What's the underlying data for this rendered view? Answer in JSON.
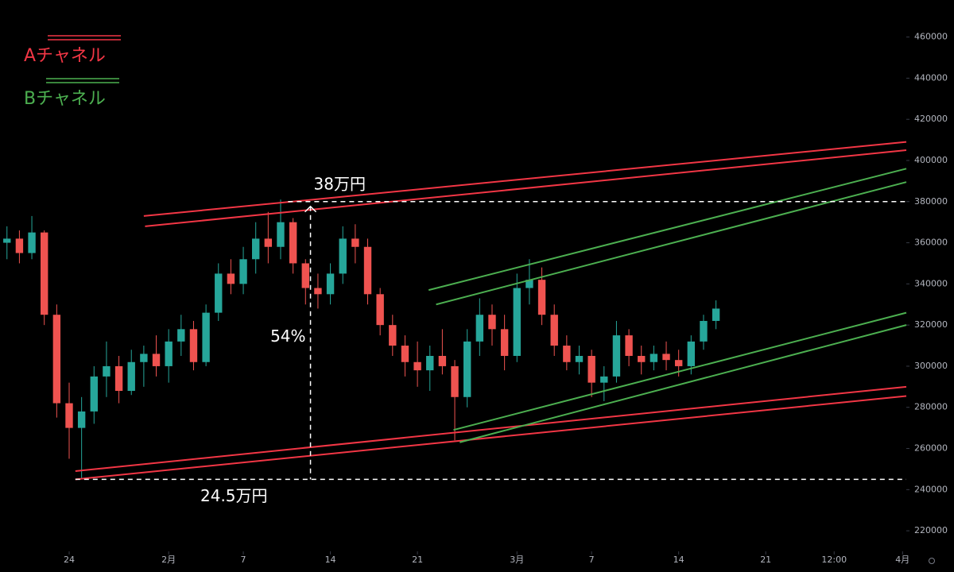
{
  "chart_data": {
    "type": "candlestick",
    "x": [
      -5,
      -4,
      -3,
      -2,
      -1,
      0,
      1,
      2,
      3,
      4,
      5,
      6,
      7,
      8,
      9,
      10,
      11,
      12,
      13,
      14,
      15,
      16,
      17,
      18,
      19,
      20,
      21,
      22,
      23,
      24,
      25,
      26,
      27,
      28,
      29,
      30,
      31,
      32,
      33,
      34,
      35,
      36,
      37,
      38,
      39,
      40,
      41,
      42,
      43,
      44,
      45,
      46,
      47,
      48,
      49,
      50,
      51,
      52
    ],
    "ohlc": [
      [
        360000,
        368000,
        352000,
        362000
      ],
      [
        362000,
        366000,
        350000,
        355000
      ],
      [
        355000,
        373000,
        352000,
        365000
      ],
      [
        365000,
        366000,
        320000,
        325000
      ],
      [
        325000,
        330000,
        275000,
        282000
      ],
      [
        282000,
        292000,
        255000,
        270000
      ],
      [
        270000,
        285000,
        245000,
        278000
      ],
      [
        278000,
        300000,
        272000,
        295000
      ],
      [
        295000,
        312000,
        285000,
        300000
      ],
      [
        300000,
        305000,
        282000,
        288000
      ],
      [
        288000,
        308000,
        286000,
        302000
      ],
      [
        302000,
        310000,
        290000,
        306000
      ],
      [
        306000,
        315000,
        295000,
        300000
      ],
      [
        300000,
        318000,
        292000,
        312000
      ],
      [
        312000,
        325000,
        305000,
        318000
      ],
      [
        318000,
        322000,
        298000,
        302000
      ],
      [
        302000,
        330000,
        300000,
        326000
      ],
      [
        326000,
        350000,
        322000,
        345000
      ],
      [
        345000,
        352000,
        335000,
        340000
      ],
      [
        340000,
        358000,
        335000,
        352000
      ],
      [
        352000,
        370000,
        345000,
        362000
      ],
      [
        362000,
        375000,
        350000,
        358000
      ],
      [
        358000,
        381000,
        352000,
        370000
      ],
      [
        370000,
        372000,
        345000,
        350000
      ],
      [
        350000,
        352000,
        330000,
        338000
      ],
      [
        338000,
        345000,
        328000,
        335000
      ],
      [
        335000,
        350000,
        330000,
        345000
      ],
      [
        345000,
        368000,
        340000,
        362000
      ],
      [
        362000,
        369000,
        350000,
        358000
      ],
      [
        358000,
        362000,
        330000,
        335000
      ],
      [
        335000,
        338000,
        315000,
        320000
      ],
      [
        320000,
        325000,
        305000,
        310000
      ],
      [
        310000,
        315000,
        295000,
        302000
      ],
      [
        302000,
        312000,
        290000,
        298000
      ],
      [
        298000,
        310000,
        288000,
        305000
      ],
      [
        305000,
        318000,
        296000,
        300000
      ],
      [
        300000,
        303000,
        264000,
        285000
      ],
      [
        285000,
        318000,
        280000,
        312000
      ],
      [
        312000,
        333000,
        305000,
        325000
      ],
      [
        325000,
        330000,
        310000,
        318000
      ],
      [
        318000,
        325000,
        298000,
        305000
      ],
      [
        305000,
        345000,
        302000,
        338000
      ],
      [
        338000,
        352000,
        330000,
        342000
      ],
      [
        342000,
        348000,
        320000,
        325000
      ],
      [
        325000,
        330000,
        305000,
        310000
      ],
      [
        310000,
        315000,
        298000,
        302000
      ],
      [
        302000,
        310000,
        296000,
        305000
      ],
      [
        305000,
        308000,
        285000,
        292000
      ],
      [
        292000,
        300000,
        283000,
        295000
      ],
      [
        295000,
        322000,
        292000,
        315000
      ],
      [
        315000,
        318000,
        300000,
        305000
      ],
      [
        305000,
        310000,
        296000,
        302000
      ],
      [
        302000,
        310000,
        298000,
        306000
      ],
      [
        306000,
        312000,
        298000,
        303000
      ],
      [
        303000,
        308000,
        295000,
        300000
      ],
      [
        300000,
        315000,
        296000,
        312000
      ],
      [
        312000,
        325000,
        308000,
        322000
      ],
      [
        322000,
        332000,
        318000,
        328000
      ]
    ],
    "up_color": "#26a69a",
    "down_color": "#ef5350",
    "xlim": [
      -5.56,
      67.3
    ],
    "xticks": [
      {
        "value": 0,
        "label": "24"
      },
      {
        "value": 8,
        "label": "2月"
      },
      {
        "value": 14,
        "label": "7"
      },
      {
        "value": 21,
        "label": "14"
      },
      {
        "value": 28,
        "label": "21"
      },
      {
        "value": 36,
        "label": "3月"
      },
      {
        "value": 42,
        "label": "7"
      },
      {
        "value": 49,
        "label": "14"
      },
      {
        "value": 56,
        "label": "21"
      },
      {
        "value": 61.5,
        "label": "12:00"
      },
      {
        "value": 67,
        "label": "4月"
      }
    ],
    "ylim": [
      210000,
      478000
    ],
    "yticks": [
      220000,
      240000,
      260000,
      280000,
      300000,
      320000,
      340000,
      360000,
      380000,
      400000,
      420000,
      440000,
      460000
    ],
    "channels": [
      {
        "name": "Aチャネル",
        "color": "#f23645",
        "lines": [
          [
            6.0,
            373000,
            67.3,
            409000
          ],
          [
            6.1,
            368000,
            67.3,
            405000
          ],
          [
            0.5,
            249000,
            67.3,
            290000
          ],
          [
            0.5,
            245000,
            67.3,
            285500
          ]
        ]
      },
      {
        "name": "Bチャネル",
        "color": "#4caf50",
        "lines": [
          [
            28.9,
            337000,
            67.3,
            396000
          ],
          [
            29.5,
            330000,
            67.3,
            389500
          ],
          [
            30.9,
            269000,
            67.3,
            326000
          ],
          [
            31.4,
            263000,
            67.3,
            320000
          ]
        ]
      }
    ],
    "measure": {
      "high": 380000,
      "low": 245000,
      "x": 19.4,
      "high_start": 17.6,
      "low_start": 0.5,
      "high_label": "38万円",
      "low_label": "24.5万円",
      "change_label": "54%"
    }
  }
}
